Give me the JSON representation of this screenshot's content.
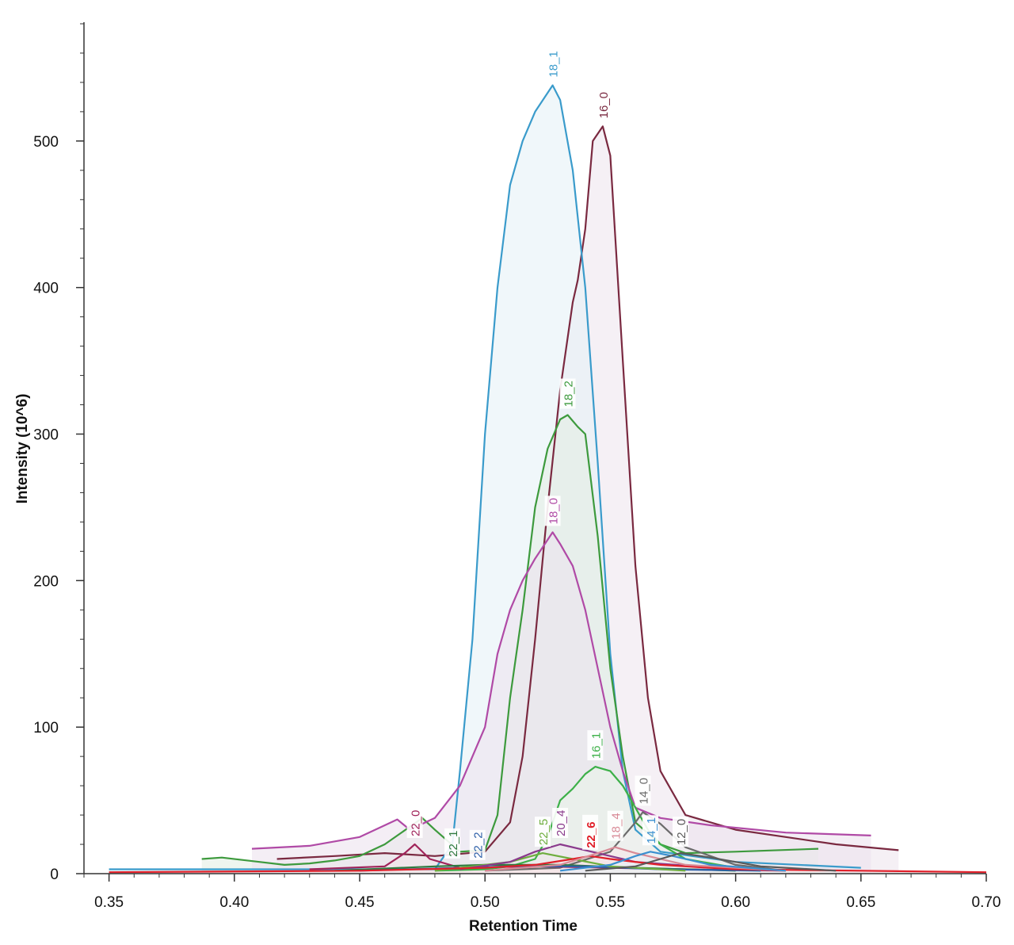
{
  "chart_data": {
    "type": "area",
    "title": "",
    "xlabel": "Retention Time",
    "ylabel": "Intensity (10^6)",
    "xlim": [
      0.34,
      0.7
    ],
    "ylim": [
      0,
      580
    ],
    "x_ticks": [
      "0.35",
      "0.40",
      "0.45",
      "0.50",
      "0.55",
      "0.60",
      "0.65",
      "0.70"
    ],
    "y_ticks": [
      "0",
      "100",
      "200",
      "300",
      "400",
      "500"
    ],
    "grid": false,
    "legend": "none",
    "series": [
      {
        "name": "16_0",
        "color": "#7a2940",
        "fill": "#efe6ee",
        "peak": [
          0.547,
          510
        ],
        "x": [
          0.417,
          0.44,
          0.46,
          0.48,
          0.5,
          0.51,
          0.515,
          0.52,
          0.525,
          0.53,
          0.535,
          0.537,
          0.54,
          0.543,
          0.547,
          0.55,
          0.555,
          0.56,
          0.565,
          0.57,
          0.58,
          0.6,
          0.62,
          0.64,
          0.665
        ],
        "y": [
          10,
          12,
          14,
          12,
          15,
          35,
          80,
          160,
          250,
          330,
          390,
          405,
          440,
          500,
          510,
          490,
          350,
          210,
          120,
          70,
          40,
          30,
          25,
          20,
          16
        ]
      },
      {
        "name": "18_1",
        "color": "#3a9bcb",
        "fill": "#e6f1f6",
        "peak": [
          0.527,
          538
        ],
        "x": [
          0.35,
          0.45,
          0.48,
          0.487,
          0.49,
          0.495,
          0.5,
          0.505,
          0.51,
          0.515,
          0.52,
          0.527,
          0.53,
          0.535,
          0.54,
          0.545,
          0.55,
          0.555,
          0.56,
          0.57,
          0.6,
          0.65
        ],
        "y": [
          3,
          3,
          3,
          20,
          70,
          160,
          300,
          400,
          470,
          500,
          520,
          538,
          528,
          480,
          400,
          280,
          150,
          70,
          30,
          15,
          8,
          4
        ]
      },
      {
        "name": "18_2",
        "color": "#3d9a3d",
        "fill": "#e4eee4",
        "peak": [
          0.533,
          313
        ],
        "x": [
          0.387,
          0.395,
          0.41,
          0.42,
          0.43,
          0.44,
          0.45,
          0.46,
          0.47,
          0.475,
          0.48,
          0.49,
          0.5,
          0.505,
          0.51,
          0.515,
          0.52,
          0.525,
          0.53,
          0.533,
          0.537,
          0.54,
          0.545,
          0.55,
          0.555,
          0.56,
          0.57,
          0.58,
          0.6,
          0.633
        ],
        "y": [
          10,
          11,
          8,
          6,
          7,
          9,
          12,
          20,
          32,
          38,
          30,
          15,
          16,
          40,
          120,
          180,
          250,
          290,
          310,
          313,
          305,
          300,
          230,
          140,
          80,
          35,
          20,
          14,
          15,
          17
        ]
      },
      {
        "name": "18_0",
        "color": "#b04aa6",
        "fill": "#ece3ee",
        "peak": [
          0.527,
          233
        ],
        "x": [
          0.407,
          0.43,
          0.45,
          0.46,
          0.465,
          0.47,
          0.48,
          0.49,
          0.5,
          0.505,
          0.51,
          0.515,
          0.52,
          0.527,
          0.53,
          0.535,
          0.54,
          0.545,
          0.55,
          0.555,
          0.56,
          0.57,
          0.59,
          0.62,
          0.654
        ],
        "y": [
          17,
          19,
          25,
          33,
          37,
          30,
          38,
          60,
          100,
          150,
          180,
          200,
          215,
          233,
          225,
          210,
          180,
          140,
          100,
          70,
          45,
          38,
          33,
          28,
          26
        ]
      },
      {
        "name": "16_1",
        "color": "#3db049",
        "fill": "#eaf3ea",
        "peak": [
          0.544,
          73
        ],
        "x": [
          0.48,
          0.5,
          0.51,
          0.52,
          0.525,
          0.53,
          0.535,
          0.54,
          0.544,
          0.55,
          0.555,
          0.56,
          0.565,
          0.57,
          0.58,
          0.6
        ],
        "y": [
          2,
          3,
          5,
          10,
          25,
          50,
          58,
          68,
          73,
          70,
          60,
          45,
          30,
          20,
          10,
          4
        ]
      },
      {
        "name": "14_0",
        "color": "#6b6b6b",
        "fill": "#f0f0f0",
        "peak": [
          0.563,
          42
        ],
        "x": [
          0.5,
          0.53,
          0.55,
          0.56,
          0.563,
          0.57,
          0.58,
          0.6,
          0.62
        ],
        "y": [
          2,
          4,
          15,
          35,
          42,
          34,
          18,
          6,
          2
        ]
      },
      {
        "name": "22_0",
        "color": "#a0245a",
        "fill": "#f1e4ea",
        "peak": [
          0.472,
          20
        ],
        "x": [
          0.43,
          0.46,
          0.468,
          0.472,
          0.478,
          0.49,
          0.52,
          0.55,
          0.58,
          0.62
        ],
        "y": [
          3,
          5,
          14,
          20,
          10,
          4,
          5,
          4,
          3,
          2
        ]
      },
      {
        "name": "22_1",
        "color": "#2f7a3f",
        "fill": "#e4efe6",
        "peak": [
          0.487,
          6
        ],
        "x": [
          0.44,
          0.48,
          0.5,
          0.53,
          0.56,
          0.6
        ],
        "y": [
          2,
          5,
          6,
          6,
          4,
          2
        ]
      },
      {
        "name": "22_2",
        "color": "#2d5fa8",
        "fill": "#e4eaf4",
        "peak": [
          0.497,
          5
        ],
        "x": [
          0.45,
          0.49,
          0.51,
          0.54,
          0.57,
          0.61
        ],
        "y": [
          2,
          4,
          5,
          5,
          3,
          2
        ]
      },
      {
        "name": "22_5",
        "color": "#6fae3f",
        "fill": "#eaf2e3",
        "peak": [
          0.523,
          14
        ],
        "x": [
          0.48,
          0.51,
          0.523,
          0.535,
          0.55,
          0.58
        ],
        "y": [
          2,
          8,
          14,
          10,
          5,
          2
        ]
      },
      {
        "name": "20_4",
        "color": "#8a3a8c",
        "fill": "#eee4ef",
        "peak": [
          0.53,
          20
        ],
        "x": [
          0.49,
          0.51,
          0.52,
          0.53,
          0.54,
          0.56,
          0.6
        ],
        "y": [
          3,
          8,
          15,
          20,
          16,
          8,
          3
        ]
      },
      {
        "name": "22_6",
        "color": "#e0202a",
        "fill": "#f6e1e2",
        "peak": [
          0.542,
          12
        ],
        "x": [
          0.35,
          0.45,
          0.5,
          0.52,
          0.535,
          0.542,
          0.55,
          0.57,
          0.6,
          0.65,
          0.7
        ],
        "y": [
          1,
          2,
          4,
          6,
          10,
          12,
          10,
          6,
          3,
          2,
          1
        ]
      },
      {
        "name": "18_4",
        "color": "#d88a96",
        "fill": "#f5e8ea",
        "peak": [
          0.552,
          18
        ],
        "x": [
          0.5,
          0.53,
          0.545,
          0.552,
          0.56,
          0.58,
          0.62
        ],
        "y": [
          2,
          6,
          14,
          18,
          14,
          6,
          2
        ]
      },
      {
        "name": "14_1",
        "color": "#3a8fd0",
        "fill": "#e4eef7",
        "peak": [
          0.566,
          15
        ],
        "x": [
          0.53,
          0.55,
          0.56,
          0.566,
          0.575,
          0.59,
          0.62
        ],
        "y": [
          2,
          6,
          12,
          15,
          12,
          6,
          2
        ]
      },
      {
        "name": "12_0",
        "color": "#5a5a5a",
        "fill": "#efefef",
        "peak": [
          0.578,
          14
        ],
        "x": [
          0.54,
          0.56,
          0.57,
          0.578,
          0.59,
          0.61,
          0.64
        ],
        "y": [
          2,
          5,
          10,
          14,
          11,
          5,
          2
        ]
      }
    ]
  }
}
